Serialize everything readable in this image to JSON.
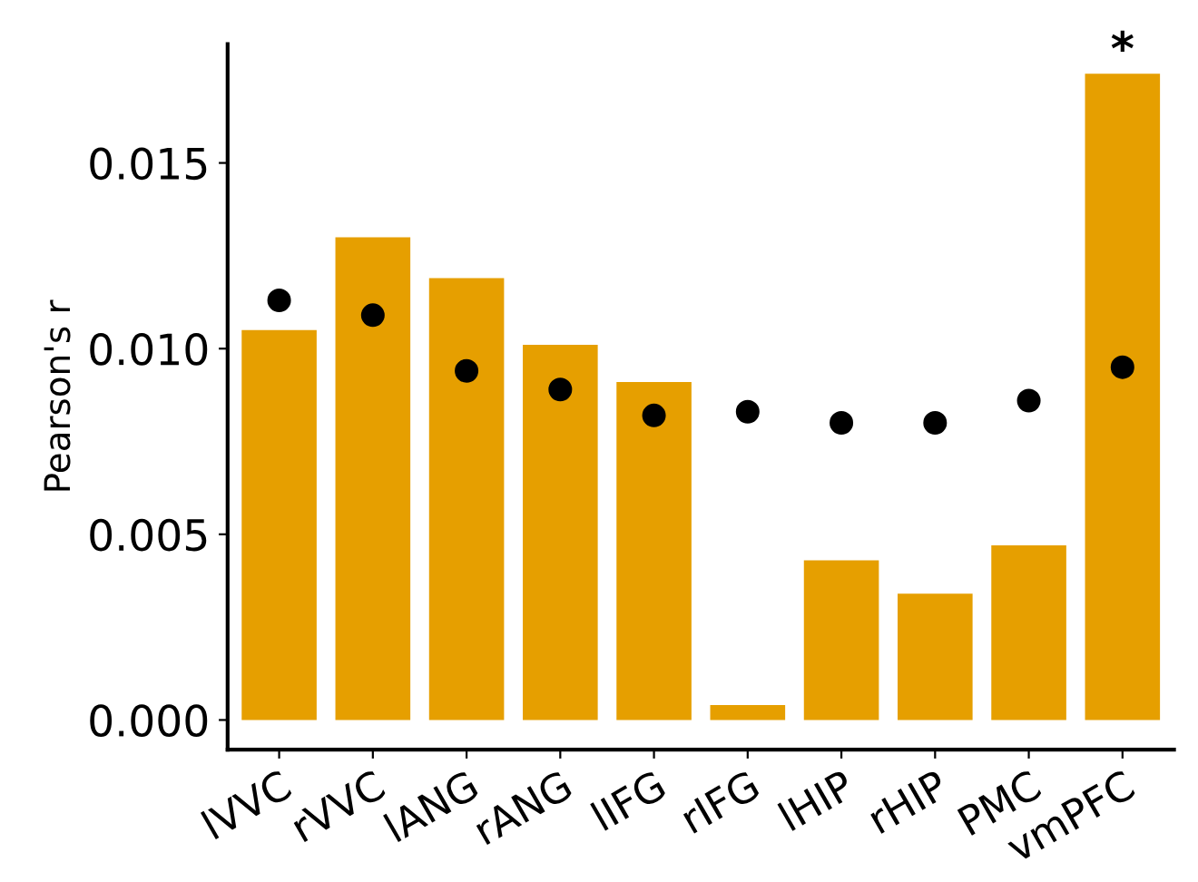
{
  "chart_data": {
    "type": "bar",
    "ylabel": "Pearson's r",
    "categories": [
      "lVVC",
      "rVVC",
      "lANG",
      "rANG",
      "lIFG",
      "rIFG",
      "lHIP",
      "rHIP",
      "PMC",
      "vmPFC"
    ],
    "series": [
      {
        "color": "#e69f00",
        "values": [
          0.0105,
          0.013,
          0.0119,
          0.0101,
          0.0091,
          0.0004,
          0.0043,
          0.0034,
          0.0047,
          0.0174
        ]
      },
      {
        "type": "scatter",
        "color": "#000000",
        "x": [
          "lVVC",
          "rVVC",
          "lANG",
          "rANG",
          "lIFG",
          "rIFG",
          "lHIP",
          "rHIP",
          "PMC",
          "vmPFC"
        ],
        "values": [
          0.0113,
          0.0109,
          0.0094,
          0.0089,
          0.0082,
          0.0083,
          0.008,
          0.008,
          0.0086,
          0.0095
        ]
      }
    ],
    "ylim": [
      -0.0008,
      0.0182
    ],
    "yticks": [
      {
        "value": 0,
        "label": "0.000"
      },
      {
        "value": 0.005,
        "label": "0.005"
      },
      {
        "value": 0.01,
        "label": "0.010"
      },
      {
        "value": 0.015,
        "label": "0.015"
      }
    ],
    "annotations": [
      {
        "text": "*",
        "x": "vmPFC",
        "y": 0.0174
      }
    ],
    "marker": "circle",
    "grid": false,
    "legend": false
  }
}
